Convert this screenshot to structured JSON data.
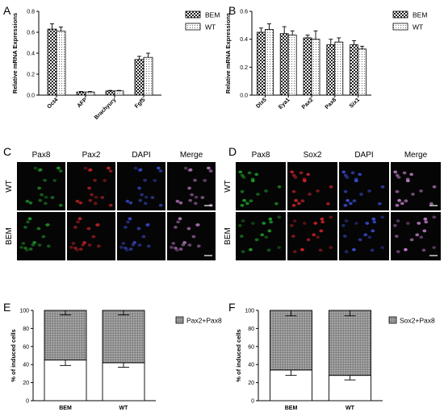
{
  "chart_data": [
    {
      "panel": "A",
      "type": "bar",
      "ylabel": "Relative mRNA Expressions",
      "categories": [
        "Oct4",
        "AFP",
        "Brachyury",
        "Fgf5"
      ],
      "series": [
        {
          "name": "BEM",
          "values": [
            0.63,
            0.03,
            0.04,
            0.34
          ],
          "errors": [
            0.05,
            0.005,
            0.005,
            0.03
          ]
        },
        {
          "name": "WT",
          "values": [
            0.61,
            0.03,
            0.04,
            0.36
          ],
          "errors": [
            0.04,
            0.005,
            0.005,
            0.04
          ]
        }
      ],
      "ylim": [
        0,
        0.8
      ],
      "yticks": [
        "0.0",
        "0.2",
        "0.4",
        "0.6",
        "0.8"
      ],
      "legend": "top-right"
    },
    {
      "panel": "B",
      "type": "bar",
      "ylabel": "Relative mRNA Expressions",
      "categories": [
        "Dlx5",
        "Eya1",
        "Pax2",
        "Pax8",
        "Six1"
      ],
      "series": [
        {
          "name": "BEM",
          "values": [
            0.45,
            0.44,
            0.41,
            0.36,
            0.36
          ],
          "errors": [
            0.03,
            0.05,
            0.02,
            0.04,
            0.03
          ]
        },
        {
          "name": "WT",
          "values": [
            0.47,
            0.43,
            0.4,
            0.38,
            0.33
          ],
          "errors": [
            0.04,
            0.03,
            0.06,
            0.03,
            0.02
          ]
        }
      ],
      "ylim": [
        0,
        0.6
      ],
      "yticks": [
        "0.0",
        "0.2",
        "0.4",
        "0.6"
      ],
      "legend": "top-right"
    },
    {
      "panel": "E",
      "type": "bar",
      "stacked": true,
      "ylabel": "% of induced cells",
      "categories": [
        "BEM",
        "WT"
      ],
      "series": [
        {
          "name": "",
          "values": [
            45,
            42
          ],
          "errors": [
            6,
            5
          ]
        },
        {
          "name": "Pax2+Pax8",
          "values": [
            55,
            58
          ],
          "errors": [
            5,
            5
          ]
        }
      ],
      "ylim": [
        0,
        100
      ],
      "yticks": [
        "0",
        "20",
        "40",
        "60",
        "80",
        "100"
      ],
      "legend": "top-right"
    },
    {
      "panel": "F",
      "type": "bar",
      "stacked": true,
      "ylabel": "% of induced cells",
      "categories": [
        "BEM",
        "WT"
      ],
      "series": [
        {
          "name": "",
          "values": [
            34,
            28
          ],
          "errors": [
            6,
            5
          ]
        },
        {
          "name": "Sox2+Pax8",
          "values": [
            66,
            72
          ],
          "errors": [
            6,
            6
          ]
        }
      ],
      "ylim": [
        0,
        100
      ],
      "yticks": [
        "0",
        "20",
        "40",
        "60",
        "80",
        "100"
      ],
      "legend": "top-right"
    }
  ],
  "micrographs": [
    {
      "panel": "C",
      "columns": [
        "Pax8",
        "Pax2",
        "DAPI",
        "Merge"
      ],
      "rows": [
        "WT",
        "BEM"
      ]
    },
    {
      "panel": "D",
      "columns": [
        "Pax8",
        "Sox2",
        "DAPI",
        "Merge"
      ],
      "rows": [
        "WT",
        "BEM"
      ]
    }
  ],
  "colors": {
    "green_channel": "#1fa02a",
    "red_channel": "#d0252b",
    "blue_channel": "#3b4fd6",
    "merge_channel": "#c07fc8",
    "stack_fill": "#9a9a9a"
  }
}
